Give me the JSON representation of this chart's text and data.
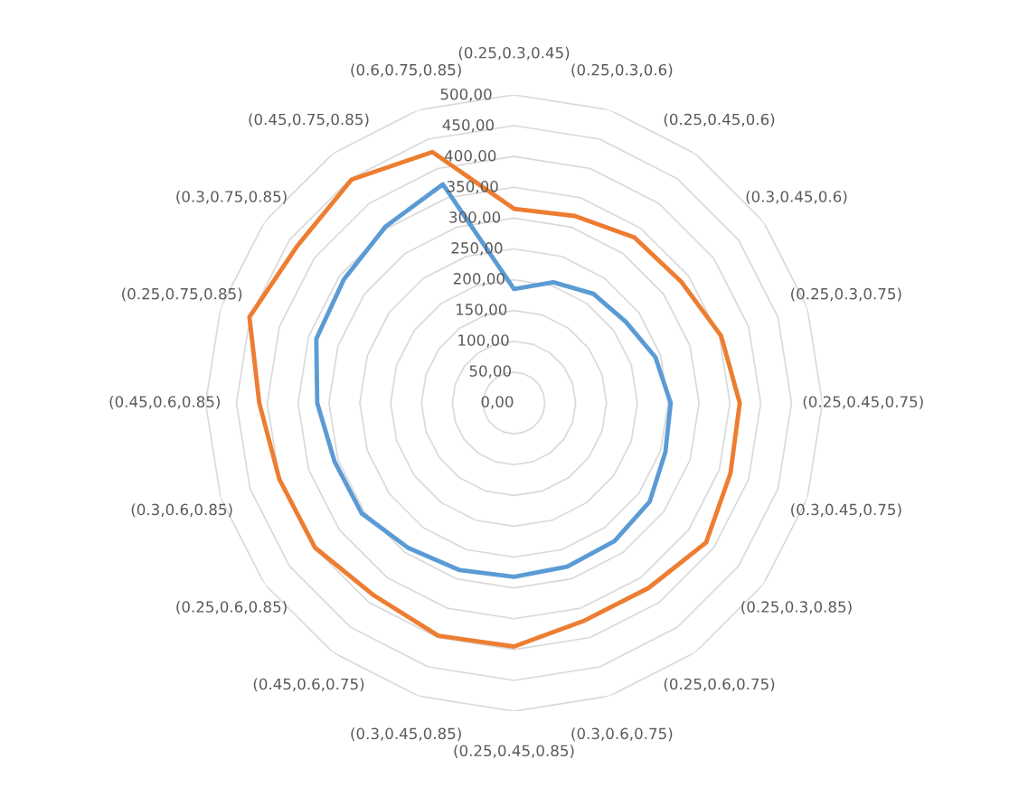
{
  "chart_data": {
    "type": "radar",
    "categories": [
      "(0.25,0.3,0.45)",
      "(0.25,0.3,0.6)",
      "(0.25,0.45,0.6)",
      "(0.3,0.45,0.6)",
      "(0.25,0.3,0.75)",
      "(0.25,0.45,0.75)",
      "(0.3,0.45,0.75)",
      "(0.25,0.3,0.85)",
      "(0.25,0.6,0.75)",
      "(0.3,0.6,0.75)",
      "(0.25,0.45,0.85)",
      "(0.3,0.45,0.85)",
      "(0.45,0.6,0.75)",
      "(0.25,0.6,0.85)",
      "(0.3,0.6,0.85)",
      "(0.45,0.6,0.85)",
      "(0.25,0.75,0.85)",
      "(0.3,0.75,0.85)",
      "(0.45,0.75,0.85)",
      "(0.6,0.75,0.85)"
    ],
    "series": [
      {
        "color": "#5b9bd5",
        "values": [
          185,
          206,
          219,
          224,
          241,
          254,
          258,
          272,
          277,
          279,
          282,
          285,
          291,
          305,
          306,
          319,
          337,
          341,
          354,
          373
        ]
      },
      {
        "color": "#ed7d31",
        "values": [
          315,
          319,
          332,
          335,
          353,
          366,
          369,
          385,
          371,
          371,
          395,
          397,
          386,
          399,
          400,
          413,
          451,
          434,
          448,
          428
        ]
      }
    ],
    "ylim": [
      0,
      500
    ],
    "yticks": [
      {
        "value": 0,
        "label": "0,00"
      },
      {
        "value": 50,
        "label": "50,00"
      },
      {
        "value": 100,
        "label": "100,00"
      },
      {
        "value": 150,
        "label": "150,00"
      },
      {
        "value": 200,
        "label": "200,00"
      },
      {
        "value": 250,
        "label": "250,00"
      },
      {
        "value": 300,
        "label": "300,00"
      },
      {
        "value": 350,
        "label": "350,00"
      },
      {
        "value": 400,
        "label": "400,00"
      },
      {
        "value": 450,
        "label": "450,00"
      },
      {
        "value": 500,
        "label": "500,00"
      }
    ],
    "grid": true
  }
}
